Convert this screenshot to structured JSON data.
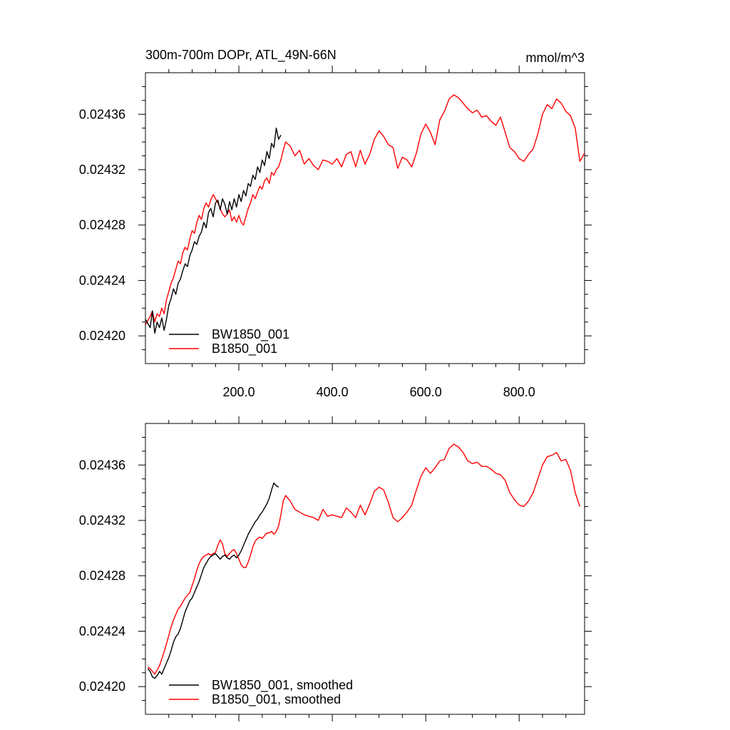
{
  "chart_data": [
    {
      "type": "line",
      "title": "300m-700m DOPr, ATL_49N-66N",
      "units": "mmol/m^3",
      "xlabel": "",
      "ylabel": "",
      "xlim": [
        0,
        940
      ],
      "ylim": [
        0.02418,
        0.02439
      ],
      "x_ticks": [
        200,
        400,
        600,
        800
      ],
      "x_tick_labels": [
        "200.0",
        "400.0",
        "600.0",
        "800.0"
      ],
      "y_ticks": [
        0.0242,
        0.02424,
        0.02428,
        0.02432,
        0.02436
      ],
      "y_tick_labels": [
        "0.02420",
        "0.02424",
        "0.02428",
        "0.02432",
        "0.02436"
      ],
      "legend_position": "bottom-left",
      "grid": false,
      "series": [
        {
          "name": "BW1850_001",
          "color": "#000000",
          "x": [
            0,
            10,
            15,
            20,
            25,
            30,
            35,
            40,
            45,
            50,
            55,
            60,
            65,
            70,
            75,
            80,
            85,
            90,
            95,
            100,
            105,
            110,
            115,
            120,
            125,
            130,
            135,
            140,
            145,
            150,
            155,
            160,
            165,
            170,
            175,
            180,
            185,
            190,
            195,
            200,
            205,
            210,
            215,
            220,
            225,
            230,
            235,
            240,
            245,
            250,
            255,
            260,
            265,
            270,
            275,
            280,
            285,
            290
          ],
          "values": [
            0.024212,
            0.024206,
            0.024218,
            0.024202,
            0.02421,
            0.024206,
            0.024213,
            0.024204,
            0.024212,
            0.024222,
            0.024227,
            0.024234,
            0.02423,
            0.024238,
            0.024241,
            0.024247,
            0.024252,
            0.02425,
            0.024258,
            0.024262,
            0.024268,
            0.024266,
            0.024272,
            0.024275,
            0.024282,
            0.024278,
            0.024289,
            0.024292,
            0.024286,
            0.024296,
            0.024298,
            0.024291,
            0.024299,
            0.024295,
            0.024288,
            0.024297,
            0.024291,
            0.024299,
            0.024293,
            0.024302,
            0.024297,
            0.024305,
            0.024301,
            0.02431,
            0.024308,
            0.024316,
            0.024313,
            0.024322,
            0.024318,
            0.024327,
            0.024323,
            0.024333,
            0.024328,
            0.024339,
            0.024336,
            0.02435,
            0.024342,
            0.024345
          ]
        },
        {
          "name": "B1850_001",
          "color": "#ff0000",
          "x": [
            0,
            10,
            15,
            20,
            25,
            30,
            35,
            40,
            45,
            50,
            55,
            60,
            65,
            70,
            75,
            80,
            85,
            90,
            95,
            100,
            105,
            110,
            115,
            120,
            125,
            130,
            135,
            140,
            145,
            150,
            155,
            160,
            165,
            170,
            175,
            180,
            185,
            190,
            195,
            200,
            205,
            210,
            215,
            220,
            225,
            230,
            235,
            240,
            245,
            250,
            255,
            260,
            265,
            270,
            275,
            280,
            285,
            290,
            295,
            300,
            310,
            320,
            330,
            340,
            350,
            360,
            370,
            380,
            390,
            400,
            410,
            420,
            430,
            440,
            450,
            460,
            470,
            480,
            490,
            500,
            510,
            520,
            530,
            540,
            550,
            560,
            570,
            580,
            590,
            600,
            610,
            620,
            630,
            640,
            650,
            660,
            670,
            680,
            690,
            700,
            710,
            720,
            730,
            740,
            750,
            760,
            770,
            780,
            790,
            800,
            810,
            820,
            830,
            840,
            850,
            860,
            870,
            880,
            890,
            900,
            910,
            920,
            930,
            940
          ],
          "values": [
            0.024208,
            0.024214,
            0.024218,
            0.02421,
            0.024216,
            0.024214,
            0.02422,
            0.024216,
            0.024226,
            0.024232,
            0.024238,
            0.024242,
            0.024248,
            0.024254,
            0.024252,
            0.02426,
            0.024264,
            0.024262,
            0.02427,
            0.024276,
            0.024274,
            0.024282,
            0.024287,
            0.024284,
            0.024292,
            0.024296,
            0.024293,
            0.024298,
            0.024302,
            0.024299,
            0.024296,
            0.024292,
            0.024288,
            0.024286,
            0.024288,
            0.024291,
            0.024283,
            0.024286,
            0.024282,
            0.024287,
            0.024282,
            0.02428,
            0.024286,
            0.024292,
            0.024296,
            0.024302,
            0.024299,
            0.024304,
            0.024308,
            0.024306,
            0.024312,
            0.024314,
            0.02431,
            0.024318,
            0.024316,
            0.02432,
            0.024322,
            0.024327,
            0.024334,
            0.02434,
            0.024337,
            0.02433,
            0.024334,
            0.024324,
            0.024328,
            0.024323,
            0.02432,
            0.024327,
            0.024326,
            0.024324,
            0.024328,
            0.024322,
            0.024331,
            0.024333,
            0.024322,
            0.024334,
            0.024324,
            0.024331,
            0.024342,
            0.024348,
            0.024344,
            0.024338,
            0.024336,
            0.024321,
            0.024329,
            0.024327,
            0.024322,
            0.024332,
            0.024346,
            0.024353,
            0.024347,
            0.024338,
            0.024356,
            0.024362,
            0.024371,
            0.024374,
            0.024372,
            0.024368,
            0.024364,
            0.024361,
            0.024363,
            0.024358,
            0.024359,
            0.024355,
            0.024352,
            0.024358,
            0.024347,
            0.024336,
            0.024333,
            0.024328,
            0.024326,
            0.024331,
            0.024335,
            0.024346,
            0.02436,
            0.024367,
            0.024364,
            0.024371,
            0.024368,
            0.024362,
            0.024359,
            0.02435,
            0.024326,
            0.024332
          ]
        }
      ]
    },
    {
      "type": "line",
      "title": "",
      "xlabel": "",
      "ylabel": "",
      "xlim": [
        0,
        940
      ],
      "ylim": [
        0.02418,
        0.02439
      ],
      "y_ticks": [
        0.0242,
        0.02424,
        0.02428,
        0.02432,
        0.02436
      ],
      "y_tick_labels": [
        "0.02420",
        "0.02424",
        "0.02428",
        "0.02432",
        "0.02436"
      ],
      "legend_position": "bottom-left",
      "grid": false,
      "series": [
        {
          "name": "BW1850_001, smoothed",
          "color": "#000000",
          "x": [
            5,
            10,
            15,
            20,
            25,
            30,
            35,
            40,
            45,
            50,
            55,
            60,
            65,
            70,
            75,
            80,
            85,
            90,
            95,
            100,
            105,
            110,
            115,
            120,
            125,
            130,
            135,
            140,
            145,
            150,
            155,
            160,
            165,
            170,
            175,
            180,
            185,
            190,
            195,
            200,
            205,
            210,
            215,
            220,
            225,
            230,
            235,
            240,
            245,
            250,
            255,
            260,
            265,
            270,
            275,
            280,
            285
          ],
          "values": [
            0.024213,
            0.024211,
            0.024207,
            0.024206,
            0.024208,
            0.024211,
            0.024209,
            0.024213,
            0.024217,
            0.024221,
            0.024226,
            0.024232,
            0.024236,
            0.024238,
            0.024242,
            0.024248,
            0.024254,
            0.024258,
            0.024262,
            0.024264,
            0.024268,
            0.024272,
            0.024276,
            0.024281,
            0.024286,
            0.024289,
            0.024292,
            0.024294,
            0.024295,
            0.024296,
            0.024294,
            0.024292,
            0.024294,
            0.024295,
            0.024293,
            0.024292,
            0.024294,
            0.024295,
            0.024293,
            0.024295,
            0.024298,
            0.024302,
            0.024306,
            0.02431,
            0.024313,
            0.024316,
            0.024319,
            0.024321,
            0.024324,
            0.024326,
            0.024329,
            0.024332,
            0.024336,
            0.024342,
            0.024347,
            0.024345,
            0.024344
          ]
        },
        {
          "name": "B1850_001, smoothed",
          "color": "#ff0000",
          "x": [
            5,
            10,
            15,
            20,
            25,
            30,
            35,
            40,
            45,
            50,
            55,
            60,
            65,
            70,
            75,
            80,
            85,
            90,
            95,
            100,
            105,
            110,
            115,
            120,
            125,
            130,
            135,
            140,
            145,
            150,
            155,
            160,
            165,
            170,
            175,
            180,
            185,
            190,
            195,
            200,
            205,
            210,
            215,
            220,
            225,
            230,
            235,
            240,
            245,
            250,
            255,
            260,
            265,
            270,
            275,
            280,
            285,
            290,
            295,
            300,
            310,
            320,
            330,
            340,
            350,
            360,
            370,
            380,
            390,
            400,
            410,
            420,
            430,
            440,
            450,
            460,
            470,
            480,
            490,
            500,
            510,
            520,
            530,
            540,
            550,
            560,
            570,
            580,
            590,
            600,
            610,
            620,
            630,
            640,
            650,
            660,
            670,
            680,
            690,
            700,
            710,
            720,
            730,
            740,
            750,
            760,
            770,
            780,
            790,
            800,
            810,
            820,
            830,
            840,
            850,
            860,
            870,
            880,
            890,
            900,
            910,
            920,
            930
          ],
          "values": [
            0.024214,
            0.024213,
            0.024211,
            0.024209,
            0.024212,
            0.024215,
            0.02422,
            0.024225,
            0.024231,
            0.024237,
            0.024243,
            0.024248,
            0.024252,
            0.024256,
            0.024258,
            0.024261,
            0.024264,
            0.024266,
            0.024268,
            0.024273,
            0.024278,
            0.024284,
            0.024289,
            0.024292,
            0.024294,
            0.024295,
            0.024296,
            0.024295,
            0.024296,
            0.024297,
            0.024302,
            0.024306,
            0.024303,
            0.024296,
            0.024294,
            0.024296,
            0.024298,
            0.024299,
            0.024296,
            0.024292,
            0.024288,
            0.024286,
            0.024286,
            0.02429,
            0.024295,
            0.024301,
            0.024305,
            0.024307,
            0.024308,
            0.024307,
            0.024309,
            0.024311,
            0.024311,
            0.024312,
            0.02431,
            0.024312,
            0.024316,
            0.024324,
            0.024334,
            0.024338,
            0.024334,
            0.024328,
            0.024326,
            0.024324,
            0.024323,
            0.024322,
            0.02432,
            0.024328,
            0.024323,
            0.024324,
            0.024323,
            0.024322,
            0.024329,
            0.024326,
            0.024322,
            0.024331,
            0.024324,
            0.024332,
            0.024341,
            0.024344,
            0.024342,
            0.024333,
            0.024322,
            0.024319,
            0.024322,
            0.024326,
            0.024331,
            0.024342,
            0.024352,
            0.024358,
            0.024354,
            0.024358,
            0.024363,
            0.024364,
            0.024372,
            0.024375,
            0.024373,
            0.024369,
            0.024363,
            0.024361,
            0.024362,
            0.024359,
            0.024359,
            0.024357,
            0.024354,
            0.024353,
            0.024349,
            0.02434,
            0.024335,
            0.024331,
            0.02433,
            0.024334,
            0.02434,
            0.02435,
            0.02436,
            0.024366,
            0.024367,
            0.024369,
            0.024363,
            0.024364,
            0.024356,
            0.02434,
            0.02433
          ]
        }
      ]
    }
  ]
}
